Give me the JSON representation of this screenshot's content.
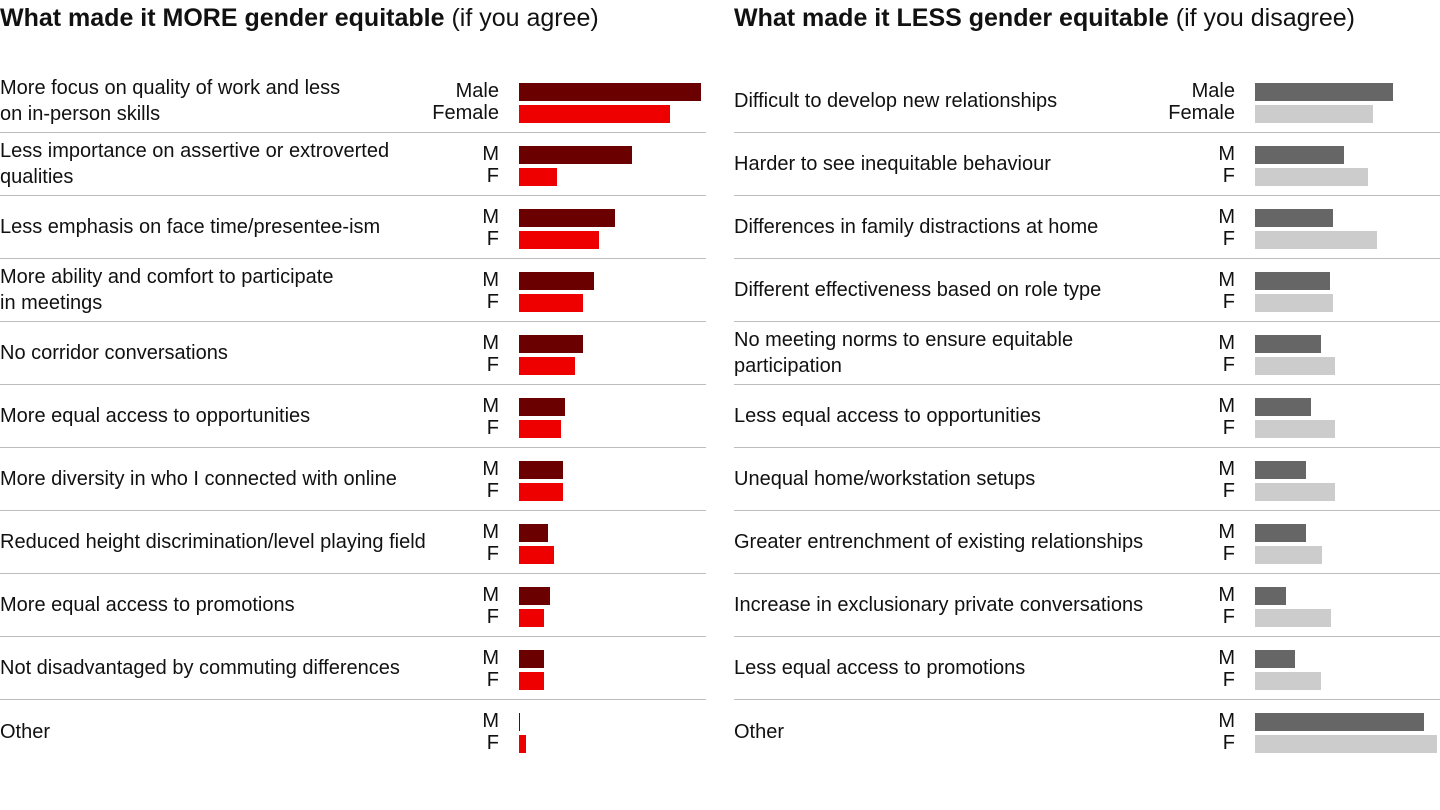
{
  "chart_data": [
    {
      "type": "bar",
      "orientation": "horizontal",
      "title_bold": "What made it MORE gender equitable",
      "title_suffix": "(if you agree)",
      "colors": {
        "male": "#6b0000",
        "female": "#ee0000"
      },
      "first_row_codes": {
        "male": "Male",
        "female": "Female"
      },
      "codes": {
        "male": "M",
        "female": "F"
      },
      "categories": [
        "More focus on quality of work and less\non in-person skills",
        "Less importance on assertive or extroverted\nqualities",
        "Less emphasis on face time/presentee-ism",
        "More ability and comfort to participate\nin meetings",
        "No corridor conversations",
        "More equal access to opportunities",
        "More diversity in who I connected with online",
        "Reduced height discrimination/level playing field",
        "More equal access to promotions",
        "Not disadvantaged by commuting differences",
        "Other"
      ],
      "xlim": [
        0,
        100
      ],
      "series": [
        {
          "name": "Male",
          "values": [
            100,
            62,
            53,
            41,
            35,
            25,
            24,
            16,
            17,
            14,
            0.5
          ]
        },
        {
          "name": "Female",
          "values": [
            83,
            21,
            44,
            35,
            31,
            23,
            24,
            19,
            14,
            14,
            4
          ]
        }
      ]
    },
    {
      "type": "bar",
      "orientation": "horizontal",
      "title_bold": "What made it LESS gender equitable",
      "title_suffix": "(if you disagree)",
      "colors": {
        "male": "#666666",
        "female": "#cccccc"
      },
      "first_row_codes": {
        "male": "Male",
        "female": "Female"
      },
      "codes": {
        "male": "M",
        "female": "F"
      },
      "categories": [
        "Difficult to develop new relationships",
        " Harder to see inequitable behaviour",
        "Differences in family distractions at home",
        "Different effectiveness based on role type",
        "No meeting norms to ensure equitable\nparticipation",
        "Less equal access to opportunities",
        "Unequal home/workstation setups",
        "Greater entrenchment of existing relationships",
        "Increase in exclusionary private conversations",
        "Less equal access to promotions",
        "Other"
      ],
      "xlim": [
        0,
        100
      ],
      "series": [
        {
          "name": "Male",
          "values": [
            76,
            49,
            43,
            41,
            36,
            31,
            28,
            28,
            17,
            22,
            93
          ]
        },
        {
          "name": "Female",
          "values": [
            65,
            62,
            67,
            43,
            44,
            44,
            44,
            37,
            42,
            36,
            100
          ]
        }
      ]
    }
  ]
}
